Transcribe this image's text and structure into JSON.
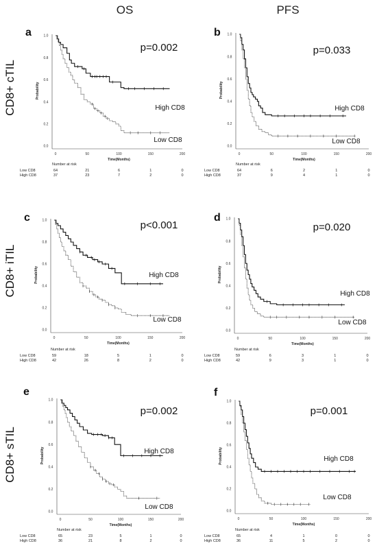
{
  "figure": {
    "column_titles": [
      "OS",
      "PFS"
    ],
    "row_titles": [
      "CD8+ cTIL",
      "CD8+ iTIL",
      "CD8+ sTIL"
    ]
  },
  "chart_data": [
    {
      "panel": "a",
      "type": "line",
      "title": "",
      "p_value": "p=0.002",
      "xlabel": "Time(Months)",
      "ylabel": "Probability",
      "xlim": [
        0,
        200
      ],
      "ylim": [
        0,
        1
      ],
      "xticks": [
        "0",
        "50",
        "100",
        "150",
        "200"
      ],
      "yticks": [
        "0.0",
        "0.2",
        "0.4",
        "0.6",
        "0.8",
        "1.0"
      ],
      "series": [
        {
          "name": "High CD8",
          "style": "solid",
          "x": [
            0,
            3,
            5,
            8,
            12,
            18,
            22,
            25,
            30,
            42,
            48,
            55,
            75,
            85,
            103,
            108,
            180
          ],
          "y": [
            1.0,
            0.97,
            0.94,
            0.92,
            0.89,
            0.84,
            0.78,
            0.75,
            0.72,
            0.7,
            0.66,
            0.63,
            0.63,
            0.58,
            0.53,
            0.52,
            0.52
          ],
          "censored_x": [
            35,
            45,
            58,
            62,
            65,
            70,
            75,
            80,
            90,
            115,
            125,
            140,
            155,
            170
          ]
        },
        {
          "name": "Low CD8",
          "style": "dotted",
          "x": [
            0,
            2,
            4,
            6,
            8,
            10,
            12,
            15,
            18,
            21,
            24,
            27,
            30,
            35,
            40,
            45,
            50,
            55,
            60,
            65,
            70,
            75,
            80,
            85,
            90,
            95,
            100,
            103,
            108,
            180
          ],
          "y": [
            1.0,
            0.97,
            0.94,
            0.91,
            0.87,
            0.83,
            0.79,
            0.75,
            0.71,
            0.67,
            0.64,
            0.6,
            0.57,
            0.53,
            0.47,
            0.42,
            0.4,
            0.38,
            0.34,
            0.32,
            0.3,
            0.27,
            0.25,
            0.23,
            0.22,
            0.2,
            0.18,
            0.14,
            0.12,
            0.12
          ],
          "censored_x": [
            58,
            62,
            67,
            72,
            78,
            82,
            118,
            130,
            150,
            165
          ]
        }
      ],
      "curve_labels": [
        "High CD8",
        "Low CD8"
      ],
      "risk_table": {
        "title": "Number at risk",
        "rows": [
          {
            "label": "Low CD8",
            "values": [
              "64",
              "21",
              "6",
              "1",
              "0"
            ]
          },
          {
            "label": "High CD8",
            "values": [
              "37",
              "23",
              "7",
              "2",
              "0"
            ]
          }
        ]
      }
    },
    {
      "panel": "b",
      "type": "line",
      "title": "",
      "p_value": "p=0.033",
      "xlabel": "Time(Months)",
      "ylabel": "Probability",
      "xlim": [
        0,
        200
      ],
      "ylim": [
        0,
        1
      ],
      "xticks": [
        "0",
        "50",
        "100",
        "150",
        "200"
      ],
      "yticks": [
        "0.0",
        "0.2",
        "0.4",
        "0.6",
        "0.8",
        "1.0"
      ],
      "series": [
        {
          "name": "High CD8",
          "style": "solid",
          "x": [
            0,
            2,
            4,
            6,
            8,
            10,
            12,
            14,
            16,
            18,
            20,
            22,
            25,
            28,
            30,
            33,
            36,
            40,
            45,
            50,
            165
          ],
          "y": [
            1.0,
            0.97,
            0.91,
            0.86,
            0.78,
            0.7,
            0.62,
            0.56,
            0.52,
            0.48,
            0.46,
            0.44,
            0.42,
            0.4,
            0.36,
            0.34,
            0.3,
            0.28,
            0.28,
            0.27,
            0.27
          ],
          "censored_x": [
            60,
            70,
            85,
            100,
            110,
            125,
            140,
            160
          ]
        },
        {
          "name": "Low CD8",
          "style": "dotted",
          "x": [
            0,
            2,
            4,
            6,
            8,
            10,
            12,
            14,
            16,
            18,
            20,
            23,
            26,
            30,
            35,
            40,
            45,
            50,
            180
          ],
          "y": [
            1.0,
            0.94,
            0.86,
            0.78,
            0.7,
            0.6,
            0.5,
            0.42,
            0.36,
            0.3,
            0.26,
            0.22,
            0.18,
            0.15,
            0.13,
            0.12,
            0.1,
            0.09,
            0.09
          ],
          "censored_x": [
            60,
            75,
            90,
            110,
            130,
            150,
            178
          ]
        }
      ],
      "curve_labels": [
        "High CD8",
        "Low CD8"
      ],
      "risk_table": {
        "title": "Number at risk",
        "rows": [
          {
            "label": "Low CD8",
            "values": [
              "64",
              "6",
              "2",
              "1",
              "0"
            ]
          },
          {
            "label": "High CD8",
            "values": [
              "37",
              "9",
              "4",
              "1",
              "0"
            ]
          }
        ]
      }
    },
    {
      "panel": "c",
      "type": "line",
      "title": "",
      "p_value": "p<0.001",
      "xlabel": "Time(Months)",
      "ylabel": "Probability",
      "xlim": [
        0,
        200
      ],
      "ylim": [
        0,
        1
      ],
      "xticks": [
        "0",
        "50",
        "100",
        "150",
        "200"
      ],
      "yticks": [
        "0.0",
        "0.2",
        "0.4",
        "0.6",
        "0.8",
        "1.0"
      ],
      "series": [
        {
          "name": "High CD8",
          "style": "solid",
          "x": [
            0,
            3,
            6,
            10,
            14,
            18,
            22,
            26,
            30,
            35,
            40,
            45,
            52,
            60,
            68,
            75,
            85,
            95,
            105,
            170
          ],
          "y": [
            1.0,
            0.97,
            0.95,
            0.92,
            0.89,
            0.86,
            0.83,
            0.8,
            0.77,
            0.74,
            0.71,
            0.68,
            0.66,
            0.64,
            0.62,
            0.6,
            0.56,
            0.52,
            0.42,
            0.42
          ],
          "censored_x": [
            40,
            50,
            58,
            63,
            70,
            80,
            90,
            110,
            130,
            150,
            165
          ]
        },
        {
          "name": "Low CD8",
          "style": "dotted",
          "x": [
            0,
            2,
            4,
            6,
            8,
            10,
            12,
            15,
            18,
            22,
            26,
            30,
            35,
            40,
            45,
            50,
            55,
            60,
            65,
            70,
            75,
            80,
            85,
            90,
            95,
            100,
            105,
            112,
            120,
            180
          ],
          "y": [
            1.0,
            0.96,
            0.92,
            0.88,
            0.84,
            0.8,
            0.76,
            0.72,
            0.68,
            0.64,
            0.58,
            0.53,
            0.48,
            0.43,
            0.4,
            0.38,
            0.35,
            0.32,
            0.3,
            0.28,
            0.27,
            0.25,
            0.23,
            0.22,
            0.2,
            0.19,
            0.16,
            0.14,
            0.13,
            0.13
          ],
          "censored_x": [
            45,
            55,
            62,
            68,
            75,
            85,
            95,
            130,
            150,
            170
          ]
        }
      ],
      "curve_labels": [
        "High CD8",
        "Low CD8"
      ],
      "risk_table": {
        "title": "Number at risk",
        "rows": [
          {
            "label": "Low CD8",
            "values": [
              "59",
              "18",
              "5",
              "1",
              "0"
            ]
          },
          {
            "label": "High CD8",
            "values": [
              "42",
              "26",
              "8",
              "2",
              "0"
            ]
          }
        ]
      }
    },
    {
      "panel": "d",
      "type": "line",
      "title": "",
      "p_value": "p=0.020",
      "xlabel": "Time(Months)",
      "ylabel": "Probability",
      "xlim": [
        0,
        200
      ],
      "ylim": [
        0,
        1
      ],
      "xticks": [
        "0",
        "50",
        "100",
        "150",
        "200"
      ],
      "yticks": [
        "0.0",
        "0.2",
        "0.4",
        "0.6",
        "0.8",
        "1.0"
      ],
      "series": [
        {
          "name": "High CD8",
          "style": "solid",
          "x": [
            0,
            2,
            4,
            6,
            8,
            10,
            12,
            14,
            16,
            18,
            20,
            22,
            25,
            28,
            31,
            35,
            40,
            45,
            50,
            60,
            165
          ],
          "y": [
            1.0,
            0.96,
            0.9,
            0.84,
            0.76,
            0.68,
            0.6,
            0.54,
            0.5,
            0.46,
            0.42,
            0.39,
            0.36,
            0.33,
            0.3,
            0.28,
            0.26,
            0.26,
            0.24,
            0.23,
            0.23
          ],
          "censored_x": [
            45,
            70,
            85,
            100,
            110,
            125,
            140,
            160
          ]
        },
        {
          "name": "Low CD8",
          "style": "dotted",
          "x": [
            0,
            2,
            4,
            6,
            8,
            10,
            12,
            14,
            16,
            18,
            20,
            23,
            26,
            30,
            35,
            40,
            45,
            180
          ],
          "y": [
            1.0,
            0.94,
            0.86,
            0.76,
            0.66,
            0.56,
            0.46,
            0.38,
            0.32,
            0.27,
            0.23,
            0.2,
            0.17,
            0.15,
            0.13,
            0.12,
            0.12,
            0.12
          ],
          "censored_x": [
            50,
            60,
            75,
            95,
            110,
            130,
            150,
            178
          ]
        }
      ],
      "curve_labels": [
        "High CD8",
        "Low CD8"
      ],
      "risk_table": {
        "title": "Number at risk",
        "rows": [
          {
            "label": "Low CD8",
            "values": [
              "59",
              "6",
              "3",
              "1",
              "0"
            ]
          },
          {
            "label": "High CD8",
            "values": [
              "42",
              "9",
              "3",
              "1",
              "0"
            ]
          }
        ]
      }
    },
    {
      "panel": "e",
      "type": "line",
      "title": "",
      "p_value": "p=0.002",
      "xlabel": "Time(Months)",
      "ylabel": "Probability",
      "xlim": [
        0,
        200
      ],
      "ylim": [
        0,
        1
      ],
      "xticks": [
        "0",
        "50",
        "100",
        "150",
        "200"
      ],
      "yticks": [
        "0.0",
        "0.2",
        "0.4",
        "0.6",
        "0.8",
        "1.0"
      ],
      "series": [
        {
          "name": "High CD8",
          "style": "solid",
          "x": [
            0,
            3,
            6,
            9,
            12,
            16,
            20,
            24,
            28,
            32,
            38,
            45,
            52,
            60,
            70,
            80,
            90,
            100,
            170
          ],
          "y": [
            1.0,
            0.97,
            0.95,
            0.93,
            0.91,
            0.88,
            0.85,
            0.82,
            0.79,
            0.76,
            0.73,
            0.7,
            0.69,
            0.69,
            0.68,
            0.66,
            0.6,
            0.5,
            0.5
          ],
          "censored_x": [
            55,
            62,
            68,
            74,
            80,
            86,
            105,
            120,
            135,
            150,
            165
          ]
        },
        {
          "name": "Low CD8",
          "style": "dotted",
          "x": [
            0,
            2,
            4,
            6,
            8,
            10,
            12,
            15,
            18,
            22,
            26,
            30,
            35,
            40,
            45,
            50,
            55,
            60,
            65,
            70,
            75,
            80,
            85,
            90,
            95,
            100,
            105,
            110,
            165
          ],
          "y": [
            1.0,
            0.97,
            0.94,
            0.91,
            0.88,
            0.84,
            0.8,
            0.76,
            0.72,
            0.68,
            0.63,
            0.58,
            0.53,
            0.48,
            0.44,
            0.4,
            0.37,
            0.34,
            0.31,
            0.29,
            0.27,
            0.25,
            0.24,
            0.22,
            0.2,
            0.18,
            0.14,
            0.12,
            0.12
          ],
          "censored_x": [
            50,
            58,
            64,
            70,
            76,
            82,
            88,
            130,
            160
          ]
        }
      ],
      "curve_labels": [
        "High CD8",
        "Low CD8"
      ],
      "risk_table": {
        "title": "Number at risk",
        "rows": [
          {
            "label": "Low CD8",
            "values": [
              "65",
              "23",
              "5",
              "1",
              "0"
            ]
          },
          {
            "label": "High CD8",
            "values": [
              "36",
              "21",
              "8",
              "2",
              "0"
            ]
          }
        ]
      }
    },
    {
      "panel": "f",
      "type": "line",
      "title": "",
      "p_value": "p=0.001",
      "xlabel": "Time(Months)",
      "ylabel": "Probability",
      "xlim": [
        0,
        200
      ],
      "ylim": [
        0,
        1
      ],
      "xticks": [
        "0",
        "50",
        "100",
        "150",
        "200"
      ],
      "yticks": [
        "0.0",
        "0.2",
        "0.4",
        "0.6",
        "0.8",
        "1.0"
      ],
      "series": [
        {
          "name": "High CD8",
          "style": "solid",
          "x": [
            0,
            2,
            4,
            6,
            8,
            10,
            12,
            14,
            16,
            18,
            20,
            23,
            26,
            30,
            35,
            180
          ],
          "y": [
            1.0,
            0.96,
            0.92,
            0.86,
            0.8,
            0.74,
            0.68,
            0.62,
            0.57,
            0.52,
            0.48,
            0.44,
            0.4,
            0.38,
            0.36,
            0.36
          ],
          "censored_x": [
            40,
            50,
            60,
            70,
            80,
            90,
            100,
            110,
            125,
            140,
            155,
            170,
            178
          ]
        },
        {
          "name": "Low CD8",
          "style": "dotted",
          "x": [
            0,
            2,
            4,
            6,
            8,
            10,
            12,
            14,
            16,
            18,
            20,
            22,
            25,
            28,
            31,
            35,
            40,
            50,
            110
          ],
          "y": [
            1.0,
            0.95,
            0.88,
            0.8,
            0.72,
            0.64,
            0.56,
            0.48,
            0.42,
            0.36,
            0.3,
            0.25,
            0.2,
            0.15,
            0.12,
            0.09,
            0.07,
            0.06,
            0.06
          ],
          "censored_x": [
            45,
            55,
            65,
            75,
            85,
            95,
            108
          ]
        }
      ],
      "curve_labels": [
        "High CD8",
        "Low CD8"
      ],
      "risk_table": {
        "title": "Number at risk",
        "rows": [
          {
            "label": "Low CD8",
            "values": [
              "65",
              "4",
              "1",
              "0",
              "0"
            ]
          },
          {
            "label": "High CD8",
            "values": [
              "36",
              "11",
              "5",
              "2",
              "0"
            ]
          }
        ]
      }
    }
  ]
}
